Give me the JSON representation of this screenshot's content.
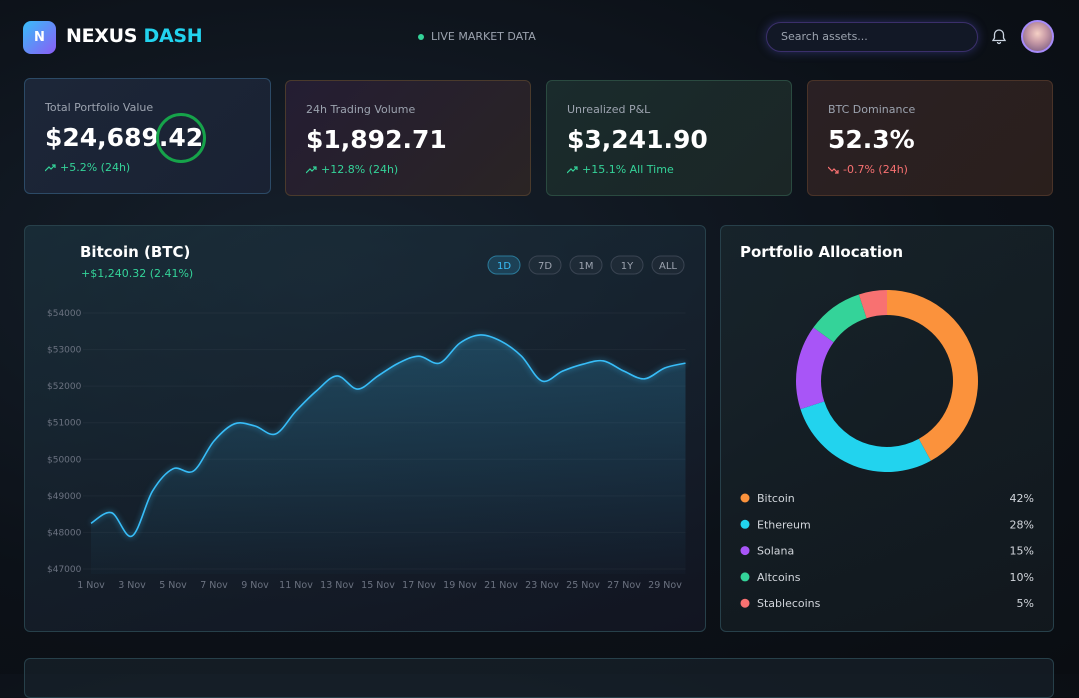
{
  "header": {
    "logo": "N",
    "brand": "NEXUS",
    "brand_accent": "DASH",
    "status": "LIVE MARKET DATA",
    "search_placeholder": "Search assets..."
  },
  "stats": [
    {
      "label": "Total Portfolio Value",
      "value": "$24,689.42",
      "change": "+5.2% (24h)"
    },
    {
      "label": "24h Trading Volume",
      "value": "$1,892.71",
      "change": "+12.8% (24h)"
    },
    {
      "label": "Unrealized P&L",
      "value": "$3,241.90",
      "change": "+15.1% All Time"
    },
    {
      "label": "BTC Dominance",
      "value": "52.3%",
      "change": "-0.7% (24h)"
    }
  ],
  "btc_chart": {
    "type": "line",
    "title": "Bitcoin (BTC)",
    "subtitle": "+$1,240.32 (2.41%)",
    "ranges": [
      "1D",
      "7D",
      "1M",
      "1Y",
      "ALL"
    ],
    "active_range": "1D",
    "color": "#38bdf8",
    "categories": [
      "1 Nov",
      null,
      "3 Nov",
      null,
      "5 Nov",
      null,
      "7 Nov",
      null,
      "9 Nov",
      null,
      "11 Nov",
      null,
      "13 Nov",
      null,
      "15 Nov",
      null,
      "17 Nov",
      null,
      "19 Nov",
      null,
      "21 Nov",
      null,
      "23 Nov",
      null,
      "25 Nov",
      null,
      "27 Nov",
      null,
      "29 Nov",
      null
    ],
    "values": [
      48250,
      48540,
      47900,
      49130,
      49740,
      49680,
      50500,
      50970,
      50910,
      50690,
      51320,
      51870,
      52280,
      51920,
      52280,
      52630,
      52820,
      52630,
      53180,
      53400,
      53230,
      52820,
      52140,
      52410,
      52600,
      52690,
      52410,
      52200,
      52500,
      52630
    ],
    "ylim": [
      47000,
      54000
    ],
    "yticks": [
      {
        "value": 47000,
        "label": "$47000"
      },
      {
        "value": 48000,
        "label": "$48000"
      },
      {
        "value": 49000,
        "label": "$49000"
      },
      {
        "value": 50000,
        "label": "$50000"
      },
      {
        "value": 51000,
        "label": "$51000"
      },
      {
        "value": 52000,
        "label": "$52000"
      },
      {
        "value": 53000,
        "label": "$53000"
      },
      {
        "value": 54000,
        "label": "$54000"
      }
    ]
  },
  "allocation": {
    "type": "pie",
    "title": "Portfolio Allocation",
    "categories": [
      "Bitcoin",
      "Ethereum",
      "Solana",
      "Altcoins",
      "Stablecoins"
    ],
    "values": [
      42,
      28,
      15,
      10,
      5
    ],
    "value_labels": [
      "42%",
      "28%",
      "15%",
      "10%",
      "5%"
    ],
    "colors": [
      "#fb923c",
      "#22d3ee",
      "#a855f7",
      "#34d399",
      "#f87171"
    ]
  }
}
